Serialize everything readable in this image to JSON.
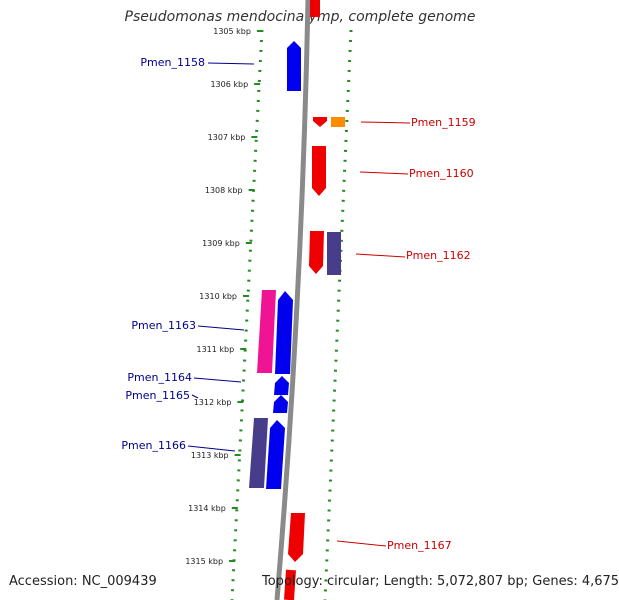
{
  "title": "Pseudomonas mendocina ymp, complete genome",
  "footer": {
    "accession": "Accession: NC_009439",
    "summary": "Topology: circular; Length: 5,072,807 bp; Genes: 4,675"
  },
  "ticks": [
    "1305 kbp",
    "1306 kbp",
    "1307 kbp",
    "1308 kbp",
    "1309 kbp",
    "1310 kbp",
    "1311 kbp",
    "1312 kbp",
    "1313 kbp",
    "1314 kbp",
    "1315 kbp"
  ],
  "genes_left": [
    {
      "id": "Pmen_1158"
    },
    {
      "id": "Pmen_1163"
    },
    {
      "id": "Pmen_1164"
    },
    {
      "id": "Pmen_1165"
    },
    {
      "id": "Pmen_1166"
    }
  ],
  "genes_right": [
    {
      "id": "Pmen_1159"
    },
    {
      "id": "Pmen_1160"
    },
    {
      "id": "Pmen_1162"
    },
    {
      "id": "Pmen_1167"
    }
  ],
  "colors": {
    "left_label": "#00008b",
    "right_label": "#cc0000",
    "blue_gene": "#0000ee",
    "red_gene": "#ee0000",
    "pink_gene": "#ee1493",
    "slate_gene": "#483d8b",
    "orange_gene": "#ff8c00",
    "dotted": "#228b22",
    "backbone": "#888888"
  }
}
